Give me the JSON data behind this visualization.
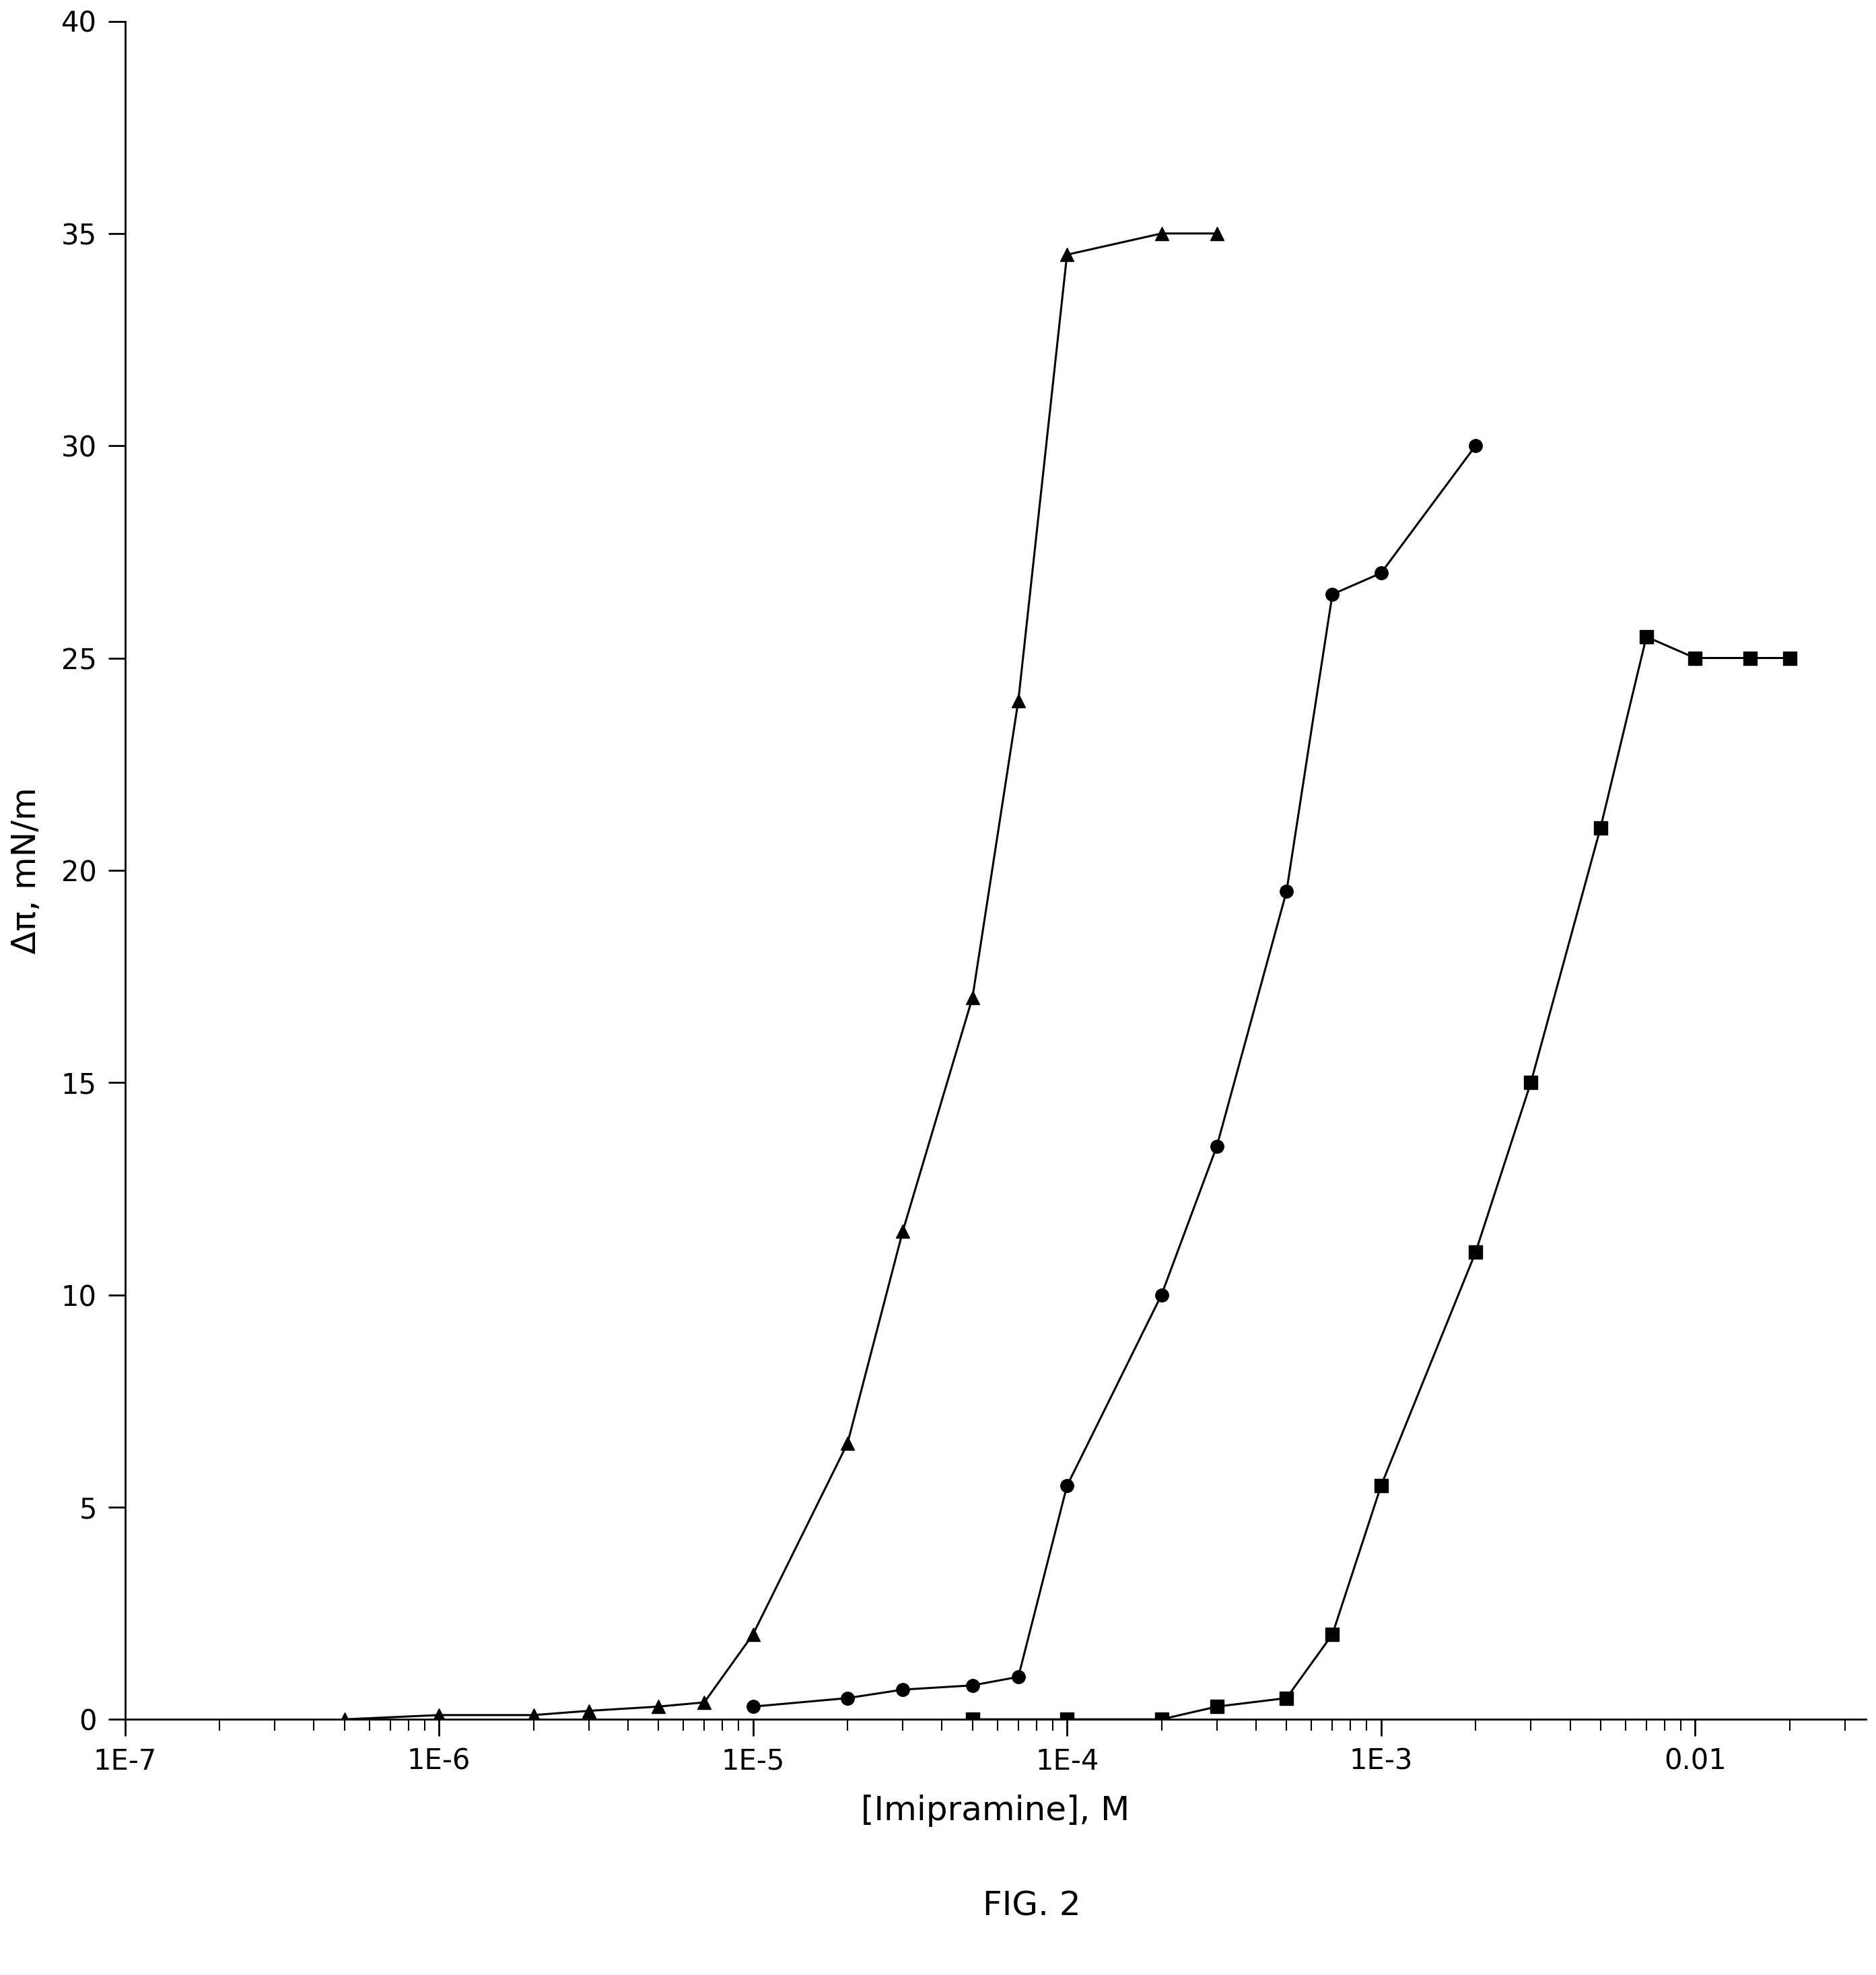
{
  "title": "FIG. 2",
  "xlabel": "[Imipramine], M",
  "ylabel": "Δπ, mN/m",
  "ylim": [
    0,
    40
  ],
  "yticks": [
    0,
    5,
    10,
    15,
    20,
    25,
    30,
    35,
    40
  ],
  "x_ticks": [
    1e-07,
    1e-06,
    1e-05,
    0.0001,
    0.001,
    0.01
  ],
  "x_tick_labels": [
    "1E-7",
    "1E-6",
    "1E-5",
    "1E-4",
    "1E-3",
    "0.01"
  ],
  "background_color": "#ffffff",
  "triangle_series": {
    "x": [
      5e-07,
      1e-06,
      2e-06,
      3e-06,
      5e-06,
      7e-06,
      1e-05,
      2e-05,
      3e-05,
      5e-05,
      7e-05,
      0.0001,
      0.0002,
      0.0003
    ],
    "y": [
      0.0,
      0.1,
      0.1,
      0.2,
      0.3,
      0.4,
      2.0,
      6.5,
      11.5,
      17.0,
      24.0,
      34.5,
      35.0,
      35.0
    ]
  },
  "circle_series": {
    "x": [
      1e-05,
      2e-05,
      3e-05,
      5e-05,
      7e-05,
      0.0001,
      0.0002,
      0.0003,
      0.0005,
      0.0007,
      0.001,
      0.002
    ],
    "y": [
      0.3,
      0.5,
      0.7,
      0.8,
      1.0,
      5.5,
      10.0,
      13.5,
      19.5,
      26.5,
      27.0,
      30.0
    ]
  },
  "square_series": {
    "x": [
      5e-05,
      0.0001,
      0.0002,
      0.0003,
      0.0005,
      0.0007,
      0.001,
      0.002,
      0.003,
      0.005,
      0.007,
      0.01,
      0.015,
      0.02
    ],
    "y": [
      0.0,
      0.0,
      0.0,
      0.3,
      0.5,
      2.0,
      5.5,
      11.0,
      15.0,
      21.0,
      25.5,
      25.0,
      25.0,
      25.0
    ]
  },
  "line_color": "#000000",
  "marker_color": "#000000",
  "marker_size": 14,
  "line_width": 2.2,
  "font_size_label": 36,
  "font_size_title": 36,
  "font_size_ticks": 30
}
